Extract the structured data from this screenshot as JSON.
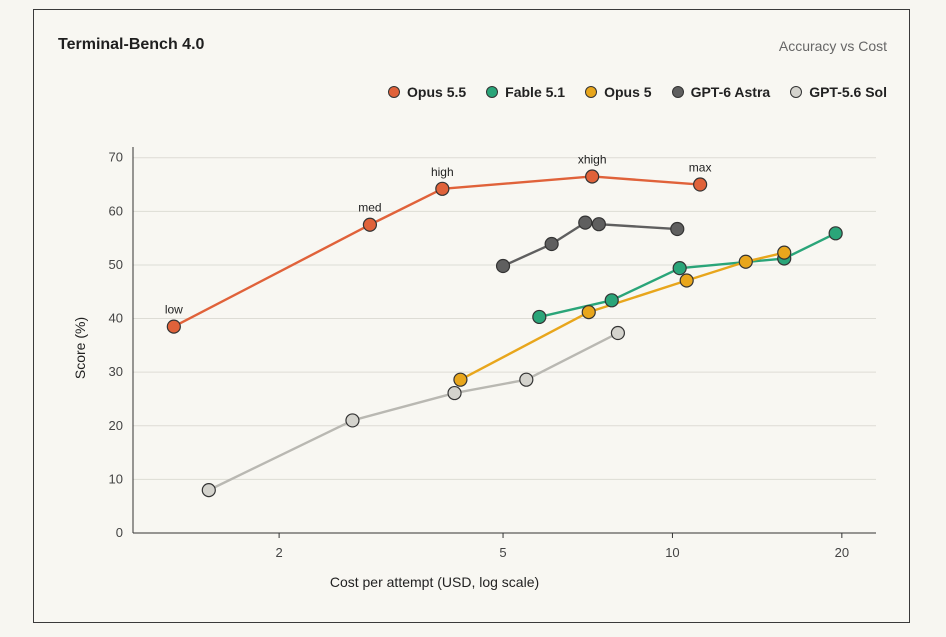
{
  "header": {
    "title": "Terminal-Bench 4.0",
    "subtitle": "Accuracy vs Cost"
  },
  "chart_data": {
    "type": "line",
    "title": "Terminal-Bench 4.0",
    "subtitle": "Accuracy vs Cost",
    "xlabel": "Cost per attempt (USD, log scale)",
    "ylabel": "Score (%)",
    "xscale": "log",
    "xlim": [
      1.1,
      23
    ],
    "ylim": [
      0,
      72
    ],
    "xticks": [
      2,
      5,
      10,
      20
    ],
    "yticks": [
      0,
      10,
      20,
      30,
      40,
      50,
      60,
      70
    ],
    "grid": "horizontal",
    "legend_position": "top-right",
    "series": [
      {
        "name": "Opus 5.5",
        "color": "#e0623a",
        "points": [
          {
            "x": 1.3,
            "y": 38.5,
            "label": "low"
          },
          {
            "x": 2.9,
            "y": 57.5,
            "label": "med"
          },
          {
            "x": 3.9,
            "y": 64.2,
            "label": "high"
          },
          {
            "x": 7.2,
            "y": 66.5,
            "label": "xhigh"
          },
          {
            "x": 11.2,
            "y": 65.0,
            "label": "max"
          }
        ]
      },
      {
        "name": "Fable 5.1",
        "color": "#2aa579",
        "points": [
          {
            "x": 5.8,
            "y": 40.3
          },
          {
            "x": 7.8,
            "y": 43.4
          },
          {
            "x": 10.3,
            "y": 49.4
          },
          {
            "x": 15.8,
            "y": 51.2
          },
          {
            "x": 19.5,
            "y": 55.9
          }
        ]
      },
      {
        "name": "Opus 5",
        "color": "#e8a61c",
        "points": [
          {
            "x": 4.2,
            "y": 28.6
          },
          {
            "x": 7.1,
            "y": 41.2
          },
          {
            "x": 10.6,
            "y": 47.1
          },
          {
            "x": 13.5,
            "y": 50.6
          },
          {
            "x": 15.8,
            "y": 52.3
          }
        ]
      },
      {
        "name": "GPT-6 Astra",
        "color": "#5f5f5f",
        "points": [
          {
            "x": 5.0,
            "y": 49.8
          },
          {
            "x": 6.1,
            "y": 53.9
          },
          {
            "x": 7.0,
            "y": 57.9
          },
          {
            "x": 7.4,
            "y": 57.6
          },
          {
            "x": 10.2,
            "y": 56.7
          }
        ]
      },
      {
        "name": "GPT-5.6 Sol",
        "color": "#d4d3cd",
        "points": [
          {
            "x": 1.5,
            "y": 8.0
          },
          {
            "x": 2.7,
            "y": 21.0
          },
          {
            "x": 4.1,
            "y": 26.1
          },
          {
            "x": 5.5,
            "y": 28.6
          },
          {
            "x": 8.0,
            "y": 37.3
          }
        ]
      }
    ]
  }
}
